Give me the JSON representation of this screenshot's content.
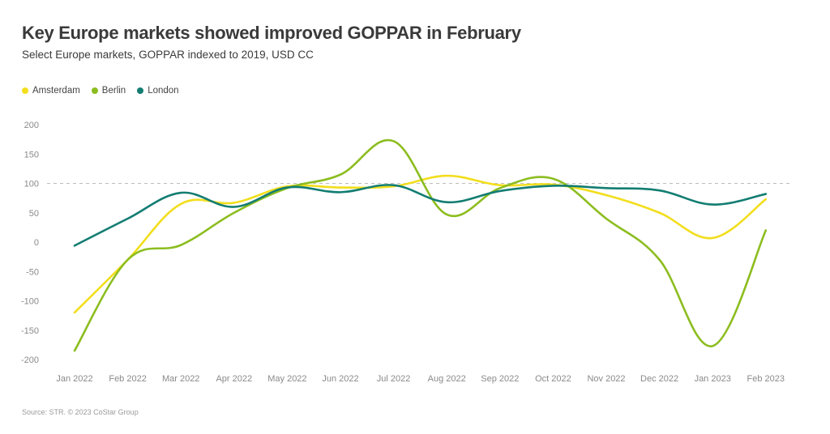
{
  "header": {
    "title": "Key Europe markets showed improved GOPPAR in February",
    "subtitle": "Select Europe markets, GOPPAR indexed to 2019, USD CC"
  },
  "footer": {
    "source": "Source: STR. © 2023 CoStar Group"
  },
  "chart_data": {
    "type": "line",
    "title": "Key Europe markets showed improved GOPPAR in February",
    "subtitle": "Select Europe markets, GOPPAR indexed to 2019, USD CC",
    "categories": [
      "Jan 2022",
      "Feb 2022",
      "Mar 2022",
      "Apr 2022",
      "May 2022",
      "Jun 2022",
      "Jul 2022",
      "Aug 2022",
      "Sep 2022",
      "Oct 2022",
      "Nov 2022",
      "Dec 2022",
      "Jan 2023",
      "Feb 2023"
    ],
    "series": [
      {
        "name": "Amsterdam",
        "color": "#f2de1d",
        "values": [
          -120,
          -30,
          65,
          67,
          95,
          93,
          95,
          113,
          97,
          98,
          80,
          50,
          7,
          73
        ]
      },
      {
        "name": "Berlin",
        "color": "#8cbd1f",
        "values": [
          -185,
          -30,
          -5,
          50,
          92,
          115,
          172,
          47,
          92,
          108,
          40,
          -30,
          -177,
          20
        ]
      },
      {
        "name": "London",
        "color": "#137d72",
        "values": [
          -6,
          40,
          84,
          60,
          93,
          85,
          97,
          68,
          87,
          96,
          92,
          88,
          64,
          82
        ]
      }
    ],
    "yticks": [
      200,
      150,
      100,
      50,
      0,
      -50,
      -100,
      -150,
      -200
    ],
    "ylim": [
      -200,
      200
    ],
    "reference_line": 100,
    "legend_position": "top-left",
    "grid": false
  }
}
